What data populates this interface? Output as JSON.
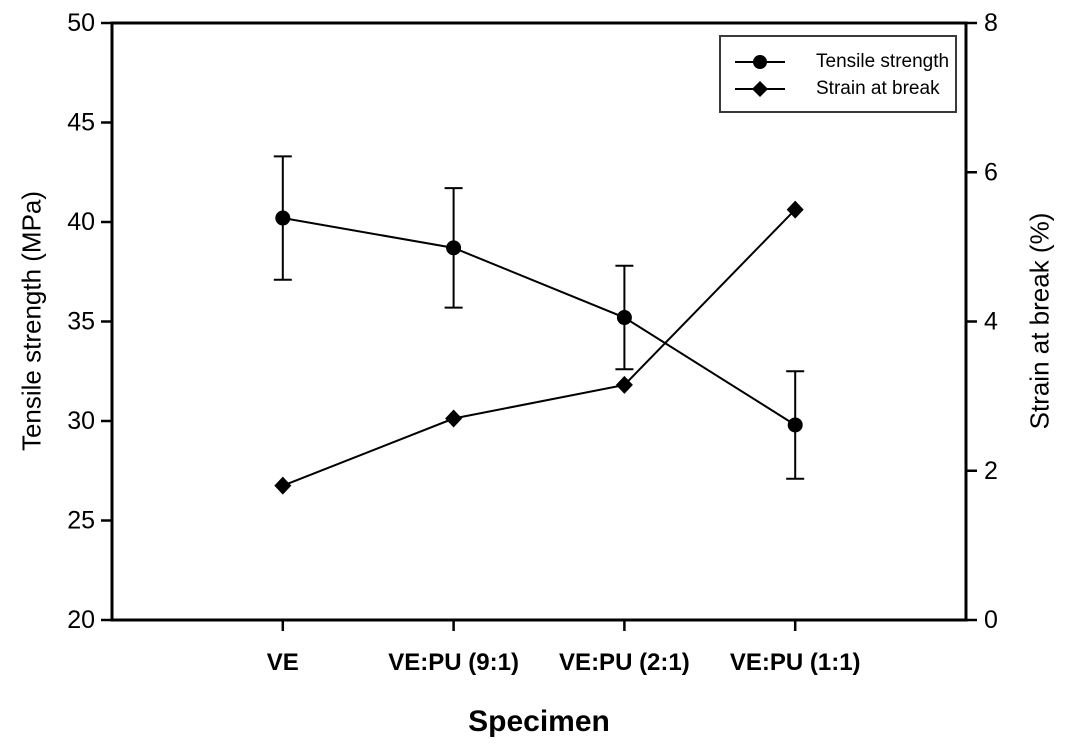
{
  "chart_data": {
    "type": "line",
    "title": "",
    "xlabel": "Specimen",
    "ylabel_left": "Tensile strength (MPa)",
    "ylabel_right": "Strain at break (%)",
    "categories": [
      "VE",
      "VE:PU (9:1)",
      "VE:PU (2:1)",
      "VE:PU (1:1)"
    ],
    "left_axis": {
      "min": 20,
      "max": 50,
      "ticks": [
        20,
        25,
        30,
        35,
        40,
        45,
        50
      ]
    },
    "right_axis": {
      "min": 0,
      "max": 8,
      "ticks": [
        0,
        2,
        4,
        6,
        8
      ]
    },
    "series": [
      {
        "name": "Tensile strength",
        "axis": "left",
        "marker": "circle",
        "values": [
          40.2,
          38.7,
          35.2,
          29.8
        ],
        "errors": [
          3.1,
          3.0,
          2.6,
          2.7
        ]
      },
      {
        "name": "Strain at break",
        "axis": "right",
        "marker": "diamond",
        "values": [
          1.8,
          2.7,
          3.15,
          5.5
        ],
        "errors": [
          0,
          0,
          0,
          0
        ]
      }
    ],
    "legend_position": "top-right",
    "grid": false,
    "colors": {
      "line": "#000000",
      "marker": "#000000",
      "axis": "#000000",
      "background": "#ffffff"
    }
  }
}
